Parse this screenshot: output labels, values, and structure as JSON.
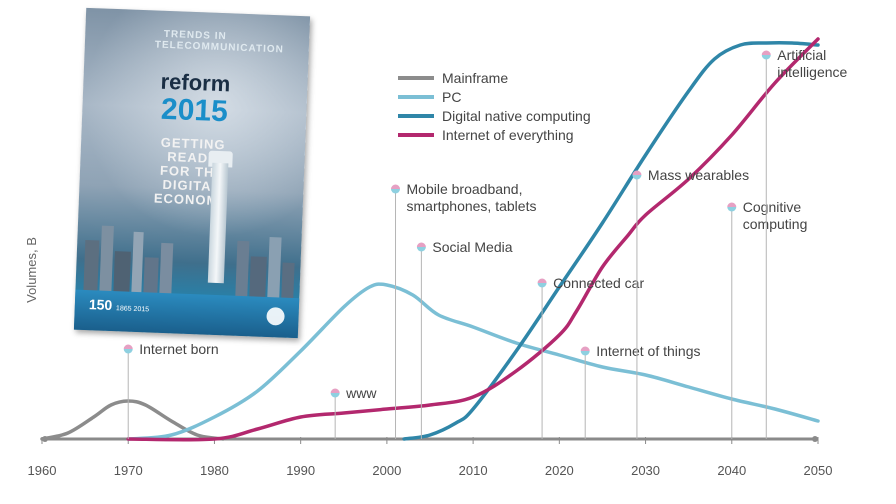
{
  "chart_data": {
    "type": "line",
    "xlabel": "",
    "ylabel": "Volumes, B",
    "xlim": [
      1960,
      2050
    ],
    "x_ticks": [
      1960,
      1970,
      1980,
      1990,
      2000,
      2010,
      2020,
      2030,
      2040,
      2050
    ],
    "series": [
      {
        "name": "Mainframe",
        "color": "#8c8c8c",
        "points": [
          [
            1960,
            0.0
          ],
          [
            1963,
            0.15
          ],
          [
            1966,
            0.55
          ],
          [
            1968,
            0.85
          ],
          [
            1970,
            0.95
          ],
          [
            1972,
            0.85
          ],
          [
            1975,
            0.45
          ],
          [
            1978,
            0.1
          ],
          [
            1981,
            0.0
          ]
        ]
      },
      {
        "name": "PC",
        "color": "#7bbfd5",
        "points": [
          [
            1970,
            0.0
          ],
          [
            1975,
            0.1
          ],
          [
            1980,
            0.55
          ],
          [
            1985,
            1.2
          ],
          [
            1990,
            2.2
          ],
          [
            1995,
            3.3
          ],
          [
            1998,
            3.8
          ],
          [
            2000,
            3.85
          ],
          [
            2003,
            3.6
          ],
          [
            2006,
            3.1
          ],
          [
            2010,
            2.8
          ],
          [
            2015,
            2.4
          ],
          [
            2020,
            2.1
          ],
          [
            2025,
            1.8
          ],
          [
            2030,
            1.6
          ],
          [
            2035,
            1.3
          ],
          [
            2040,
            1.0
          ],
          [
            2045,
            0.75
          ],
          [
            2050,
            0.45
          ]
        ]
      },
      {
        "name": "Digital native computing",
        "color": "#2f86a8",
        "points": [
          [
            2002,
            0.0
          ],
          [
            2005,
            0.1
          ],
          [
            2008,
            0.4
          ],
          [
            2010,
            0.75
          ],
          [
            2015,
            2.2
          ],
          [
            2020,
            3.8
          ],
          [
            2025,
            5.4
          ],
          [
            2030,
            7.1
          ],
          [
            2035,
            8.7
          ],
          [
            2038,
            9.5
          ],
          [
            2041,
            9.85
          ],
          [
            2044,
            9.9
          ],
          [
            2047,
            9.9
          ],
          [
            2050,
            9.85
          ]
        ]
      },
      {
        "name": "Internet of everything",
        "color": "#b3286e",
        "points": [
          [
            1970,
            0.0
          ],
          [
            1980,
            0.0
          ],
          [
            1985,
            0.25
          ],
          [
            1990,
            0.55
          ],
          [
            1995,
            0.65
          ],
          [
            2000,
            0.75
          ],
          [
            2005,
            0.85
          ],
          [
            2010,
            1.05
          ],
          [
            2015,
            1.7
          ],
          [
            2020,
            2.6
          ],
          [
            2022,
            3.2
          ],
          [
            2025,
            4.3
          ],
          [
            2028,
            5.1
          ],
          [
            2030,
            5.6
          ],
          [
            2035,
            6.5
          ],
          [
            2040,
            7.6
          ],
          [
            2045,
            8.9
          ],
          [
            2050,
            10.0
          ]
        ]
      }
    ],
    "annotations": [
      {
        "x": 1970,
        "lines": [
          "Internet born"
        ],
        "dot_y": 2.25
      },
      {
        "x": 1994,
        "lines": [
          "www"
        ],
        "dot_y": 1.15
      },
      {
        "x": 2001,
        "lines": [
          "Mobile broadband,",
          "smartphones, tablets"
        ],
        "dot_y": 6.25
      },
      {
        "x": 2004,
        "lines": [
          "Social Media"
        ],
        "dot_y": 4.8
      },
      {
        "x": 2018,
        "lines": [
          "Connected car"
        ],
        "dot_y": 3.9
      },
      {
        "x": 2023,
        "lines": [
          "Internet of things"
        ],
        "dot_y": 2.2
      },
      {
        "x": 2029,
        "lines": [
          "Mass wearables"
        ],
        "dot_y": 6.6
      },
      {
        "x": 2040,
        "lines": [
          "Cognitive",
          "computing"
        ],
        "dot_y": 5.8
      },
      {
        "x": 2044,
        "lines": [
          "Artificial",
          "intelligence"
        ],
        "dot_y": 9.6
      }
    ],
    "legend_position": "top-center",
    "grid": false
  },
  "cover": {
    "title_top": "TRENDS IN TELECOMMUNICATION",
    "title_word": "reform",
    "year": "2015",
    "subtitle": [
      "GETTING",
      "READY",
      "FOR THE",
      "DIGITAL",
      "ECONOMY"
    ],
    "anniversary": "150",
    "anniversary_years": "1865 2015"
  }
}
